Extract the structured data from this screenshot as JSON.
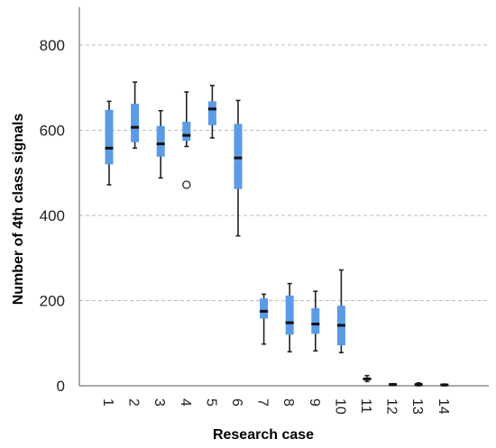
{
  "chart_data": {
    "type": "boxplot",
    "xlabel": "Research case",
    "ylabel": "Number of 4th class signals",
    "ylim": [
      0,
      800
    ],
    "yticks": [
      0,
      200,
      400,
      600,
      800
    ],
    "grid": "horizontal dashed",
    "categories": [
      "1",
      "2",
      "3",
      "4",
      "5",
      "6",
      "7",
      "8",
      "9",
      "10",
      "11",
      "12",
      "13",
      "14"
    ],
    "boxes": [
      {
        "case": "1",
        "min": 472,
        "q1": 520,
        "median": 558,
        "q3": 648,
        "max": 668
      },
      {
        "case": "2",
        "min": 558,
        "q1": 572,
        "median": 607,
        "q3": 662,
        "max": 713
      },
      {
        "case": "3",
        "min": 488,
        "q1": 538,
        "median": 568,
        "q3": 610,
        "max": 646
      },
      {
        "case": "4",
        "min": 562,
        "q1": 575,
        "median": 588,
        "q3": 620,
        "max": 690,
        "outliers": [
          472
        ]
      },
      {
        "case": "5",
        "min": 582,
        "q1": 612,
        "median": 650,
        "q3": 668,
        "max": 705
      },
      {
        "case": "6",
        "min": 352,
        "q1": 462,
        "median": 535,
        "q3": 615,
        "max": 670
      },
      {
        "case": "7",
        "min": 98,
        "q1": 158,
        "median": 175,
        "q3": 205,
        "max": 215
      },
      {
        "case": "8",
        "min": 80,
        "q1": 120,
        "median": 148,
        "q3": 212,
        "max": 240
      },
      {
        "case": "9",
        "min": 82,
        "q1": 122,
        "median": 145,
        "q3": 182,
        "max": 222
      },
      {
        "case": "10",
        "min": 78,
        "q1": 95,
        "median": 142,
        "q3": 188,
        "max": 272
      },
      {
        "case": "11",
        "min": 10,
        "q1": 14,
        "median": 16,
        "q3": 20,
        "max": 24
      },
      {
        "case": "12",
        "min": 1,
        "q1": 2,
        "median": 3,
        "q3": 4,
        "max": 5
      },
      {
        "case": "13",
        "min": 0,
        "q1": 2,
        "median": 3,
        "q3": 5,
        "max": 7
      },
      {
        "case": "14",
        "min": 0,
        "q1": 1,
        "median": 2,
        "q3": 3,
        "max": 4
      }
    ],
    "colors": {
      "box": "#5b9be6",
      "median": "#111111",
      "whisker": "#222222",
      "grid": "#bdbdbd",
      "axis": "#555555"
    }
  }
}
